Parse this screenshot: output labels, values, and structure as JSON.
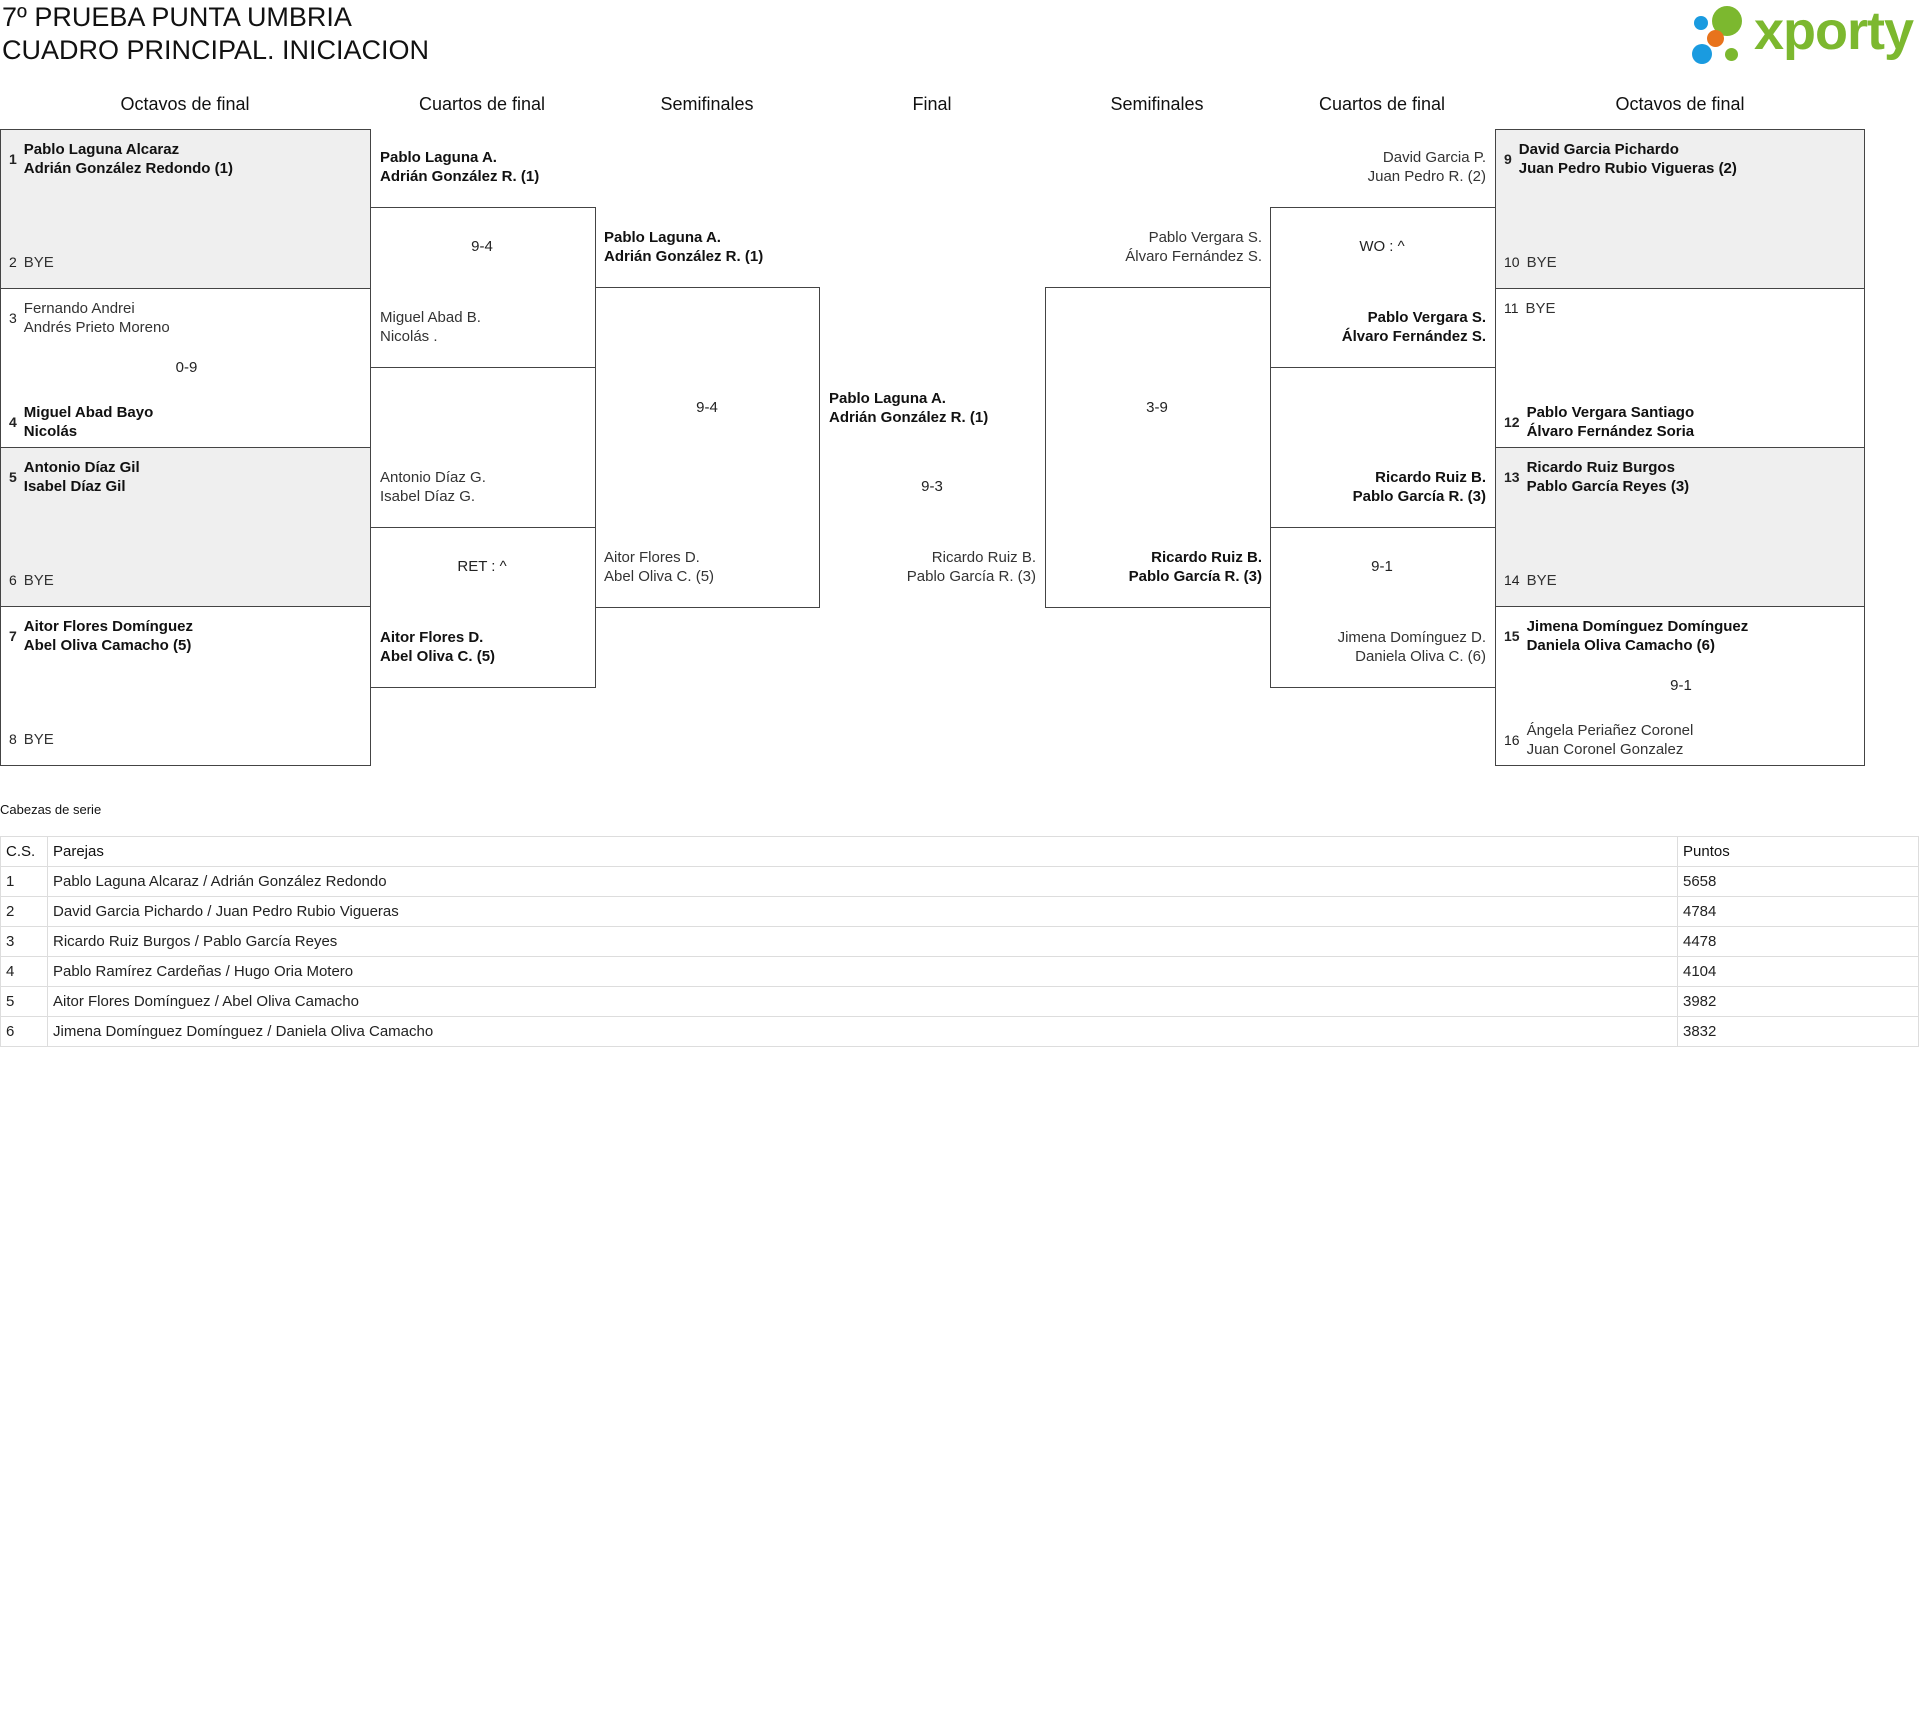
{
  "header": {
    "title_line1": "7º PRUEBA PUNTA UMBRIA",
    "title_line2": "CUADRO PRINCIPAL. INICIACION",
    "logo_text": "xporty",
    "logo_colors": {
      "green": "#7cb82f",
      "blue": "#1a9be0",
      "orange": "#e8731c"
    }
  },
  "round_headers": [
    "Octavos de final",
    "Cuartos de final",
    "Semifinales",
    "Final",
    "Semifinales",
    "Cuartos de final",
    "Octavos de final"
  ],
  "bracket": {
    "octavos_left": [
      {
        "top": {
          "seed": "1",
          "lines": [
            "Pablo Laguna Alcaraz",
            "Adrián González Redondo (1)"
          ],
          "winner": true
        },
        "bottom": {
          "seed": "2",
          "lines": [
            "BYE"
          ],
          "winner": false
        },
        "score": ""
      },
      {
        "top": {
          "seed": "3",
          "lines": [
            "Fernando Andrei",
            "Andrés Prieto Moreno"
          ],
          "winner": false
        },
        "bottom": {
          "seed": "4",
          "lines": [
            "Miguel Abad Bayo",
            "Nicolás"
          ],
          "winner": true
        },
        "score": "0-9"
      },
      {
        "top": {
          "seed": "5",
          "lines": [
            "Antonio Díaz Gil",
            "Isabel Díaz Gil"
          ],
          "winner": true
        },
        "bottom": {
          "seed": "6",
          "lines": [
            "BYE"
          ],
          "winner": false
        },
        "score": ""
      },
      {
        "top": {
          "seed": "7",
          "lines": [
            "Aitor Flores Domínguez",
            "Abel Oliva Camacho (5)"
          ],
          "winner": true
        },
        "bottom": {
          "seed": "8",
          "lines": [
            "BYE"
          ],
          "winner": false
        },
        "score": ""
      }
    ],
    "octavos_right": [
      {
        "top": {
          "seed": "9",
          "lines": [
            "David Garcia Pichardo",
            "Juan Pedro Rubio Vigueras (2)"
          ],
          "winner": true
        },
        "bottom": {
          "seed": "10",
          "lines": [
            "BYE"
          ],
          "winner": false
        },
        "score": ""
      },
      {
        "top": {
          "seed": "11",
          "lines": [
            "BYE"
          ],
          "winner": false
        },
        "bottom": {
          "seed": "12",
          "lines": [
            "Pablo Vergara Santiago",
            "Álvaro Fernández Soria"
          ],
          "winner": true
        },
        "score": ""
      },
      {
        "top": {
          "seed": "13",
          "lines": [
            "Ricardo Ruiz Burgos",
            "Pablo García Reyes (3)"
          ],
          "winner": true
        },
        "bottom": {
          "seed": "14",
          "lines": [
            "BYE"
          ],
          "winner": false
        },
        "score": ""
      },
      {
        "top": {
          "seed": "15",
          "lines": [
            "Jimena Domínguez Domínguez",
            "Daniela Oliva Camacho (6)"
          ],
          "winner": true
        },
        "bottom": {
          "seed": "16",
          "lines": [
            "Ángela Periañez Coronel",
            "Juan Coronel Gonzalez"
          ],
          "winner": false
        },
        "score": "9-1"
      }
    ],
    "cuartos_left": [
      {
        "top": {
          "lines": [
            "Pablo Laguna A.",
            "Adrián González R. (1)"
          ],
          "winner": true
        },
        "bottom": {
          "lines": [
            "Miguel Abad B.",
            "Nicolás ."
          ],
          "winner": false
        },
        "score": "9-4"
      },
      {
        "top": {
          "lines": [
            "Antonio Díaz G.",
            "Isabel Díaz G."
          ],
          "winner": false
        },
        "bottom": {
          "lines": [
            "Aitor Flores D.",
            "Abel Oliva C. (5)"
          ],
          "winner": true
        },
        "score": "RET : ^"
      }
    ],
    "cuartos_right": [
      {
        "top": {
          "lines": [
            "David Garcia P.",
            "Juan Pedro R. (2)"
          ],
          "winner": false
        },
        "bottom": {
          "lines": [
            "Pablo Vergara S.",
            "Álvaro Fernández S."
          ],
          "winner": true
        },
        "score": "WO : ^"
      },
      {
        "top": {
          "lines": [
            "Ricardo Ruiz B.",
            "Pablo García R. (3)"
          ],
          "winner": true
        },
        "bottom": {
          "lines": [
            "Jimena Domínguez D.",
            "Daniela Oliva C. (6)"
          ],
          "winner": false
        },
        "score": "9-1"
      }
    ],
    "semis_left": {
      "top": {
        "lines": [
          "Pablo Laguna A.",
          "Adrián González R. (1)"
        ],
        "winner": true
      },
      "bottom": {
        "lines": [
          "Aitor Flores D.",
          "Abel Oliva C. (5)"
        ],
        "winner": false
      },
      "score": "9-4"
    },
    "semis_right": {
      "top": {
        "lines": [
          "Pablo Vergara S.",
          "Álvaro Fernández S."
        ],
        "winner": false
      },
      "bottom": {
        "lines": [
          "Ricardo Ruiz B.",
          "Pablo García R. (3)"
        ],
        "winner": true
      },
      "score": "3-9"
    },
    "final": {
      "top": {
        "lines": [
          "Pablo Laguna A.",
          "Adrián González R. (1)"
        ],
        "winner": true
      },
      "bottom": {
        "lines": [
          "Ricardo Ruiz B.",
          "Pablo García R. (3)"
        ],
        "winner": false
      },
      "score": "9-3"
    }
  },
  "seeds": {
    "title": "Cabezas de serie",
    "columns": [
      "C.S.",
      "Parejas",
      "Puntos"
    ],
    "rows": [
      [
        "1",
        "Pablo Laguna Alcaraz / Adrián González Redondo",
        "5658"
      ],
      [
        "2",
        "David Garcia Pichardo / Juan Pedro Rubio Vigueras",
        "4784"
      ],
      [
        "3",
        "Ricardo Ruiz Burgos / Pablo García Reyes",
        "4478"
      ],
      [
        "4",
        "Pablo Ramírez Cardeñas / Hugo Oria Motero",
        "4104"
      ],
      [
        "5",
        "Aitor Flores Domínguez / Abel Oliva Camacho",
        "3982"
      ],
      [
        "6",
        "Jimena Domínguez Domínguez / Daniela Oliva Camacho",
        "3832"
      ]
    ]
  }
}
